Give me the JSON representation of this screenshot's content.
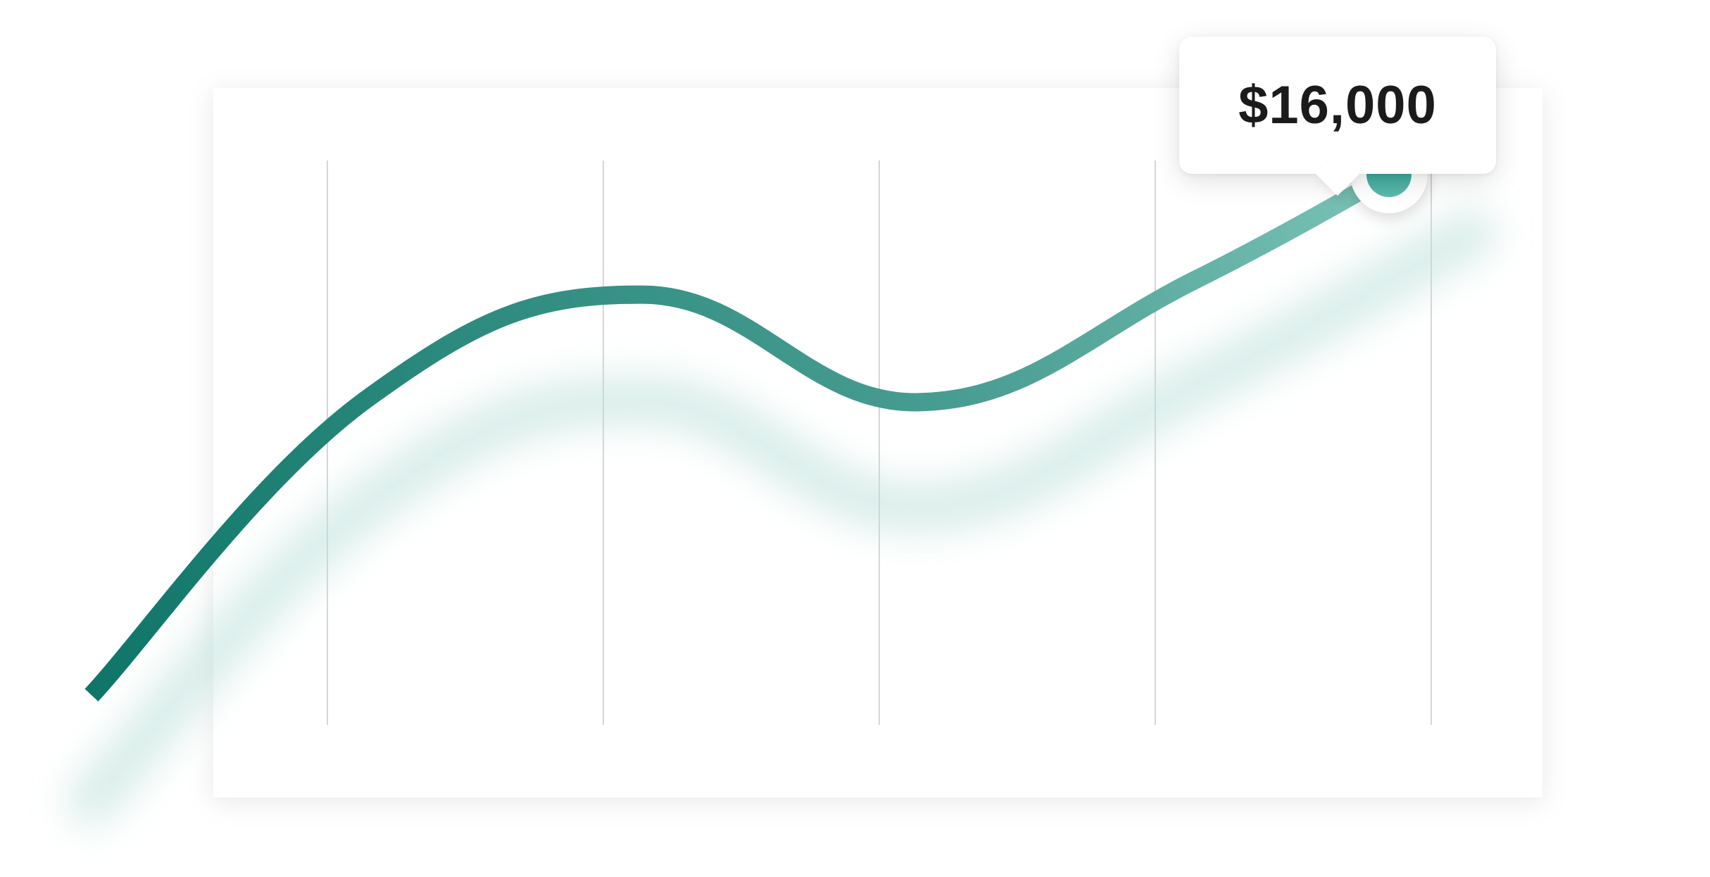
{
  "chart_data": {
    "type": "line",
    "title": "",
    "xlabel": "",
    "ylabel": "",
    "grid": "vertical",
    "x": [
      0,
      1,
      2,
      3,
      4,
      5
    ],
    "series": [
      {
        "values": [
          2000,
          10000,
          12800,
          9900,
          13200,
          17300
        ]
      }
    ],
    "ylim": [
      0,
      19000
    ],
    "highlight": {
      "x": 4.7,
      "value": 16000,
      "label": "$16,000"
    },
    "colors": {
      "line_start": "#0e7568",
      "line_mid": "#56a99d",
      "line_end": "#c9f5ea",
      "shadow": "#b9dfd8",
      "marker": "#2a9a8c"
    }
  }
}
